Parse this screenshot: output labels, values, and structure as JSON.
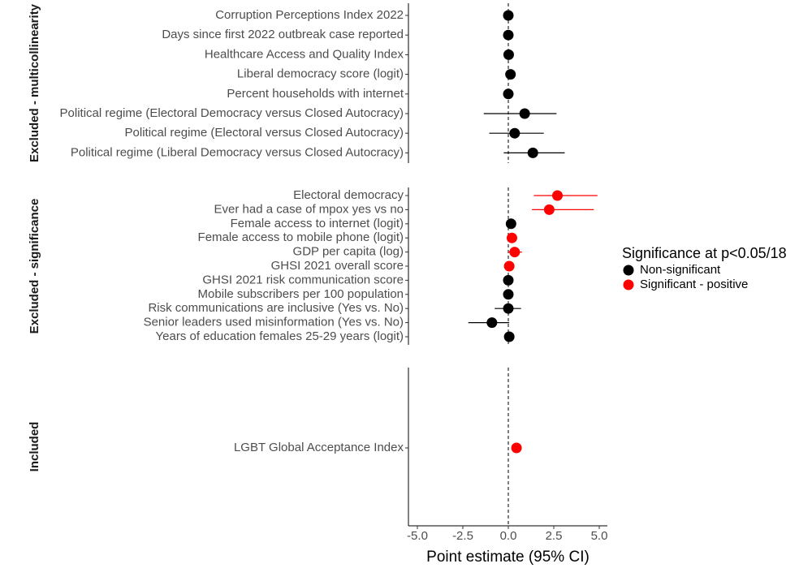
{
  "chart_data": {
    "type": "forest",
    "xlabel": "Point estimate (95% CI)",
    "xlim": [
      -5.5,
      5.5
    ],
    "xticks": [
      {
        "value": -5.0,
        "label": "-5.0"
      },
      {
        "value": -2.5,
        "label": "-2.5"
      },
      {
        "value": 0.0,
        "label": "0.0"
      },
      {
        "value": 2.5,
        "label": "2.5"
      },
      {
        "value": 5.0,
        "label": "5.0"
      }
    ],
    "reference_line": 0,
    "legend": {
      "title": "Significance at p<0.05/18",
      "placement": "right",
      "entries": [
        {
          "label": "Non-significant",
          "color": "#000000"
        },
        {
          "label": "Significant - positive",
          "color": "#ff0000"
        }
      ]
    },
    "panels": [
      {
        "label": "Excluded - multicollinearity",
        "rows": [
          {
            "label": "Corruption Perceptions Index 2022",
            "estimate": 0.0,
            "lower": -0.05,
            "upper": 0.05,
            "group": 0
          },
          {
            "label": "Days since first 2022 outbreak case reported",
            "estimate": 0.0,
            "lower": -0.05,
            "upper": 0.05,
            "group": 0
          },
          {
            "label": "Healthcare Access and Quality Index",
            "estimate": 0.02,
            "lower": -0.03,
            "upper": 0.07,
            "group": 0
          },
          {
            "label": "Liberal democracy score (logit)",
            "estimate": 0.12,
            "lower": 0.0,
            "upper": 0.25,
            "group": 0
          },
          {
            "label": "Percent households with internet",
            "estimate": 0.0,
            "lower": -0.05,
            "upper": 0.05,
            "group": 0
          },
          {
            "label": "Political regime (Electoral Democracy versus Closed Autocracy)",
            "estimate": 0.9,
            "lower": -1.35,
            "upper": 2.65,
            "group": 0
          },
          {
            "label": "Political regime (Electoral versus Closed Autocracy)",
            "estimate": 0.35,
            "lower": -1.05,
            "upper": 1.95,
            "group": 0
          },
          {
            "label": "Political regime (Liberal Democracy versus Closed Autocracy)",
            "estimate": 1.35,
            "lower": -0.25,
            "upper": 3.1,
            "group": 0
          }
        ]
      },
      {
        "label": "Excluded - significance",
        "rows": [
          {
            "label": "Electoral democracy",
            "estimate": 2.7,
            "lower": 1.4,
            "upper": 4.9,
            "group": 1
          },
          {
            "label": "Ever had a case of mpox yes vs no",
            "estimate": 2.25,
            "lower": 1.3,
            "upper": 4.7,
            "group": 1
          },
          {
            "label": "Female access to internet (logit)",
            "estimate": 0.15,
            "lower": 0.02,
            "upper": 0.3,
            "group": 0
          },
          {
            "label": "Female access to mobile phone (logit)",
            "estimate": 0.2,
            "lower": 0.05,
            "upper": 0.35,
            "group": 1
          },
          {
            "label": "GDP per capita (log)",
            "estimate": 0.35,
            "lower": 0.0,
            "upper": 0.75,
            "group": 1
          },
          {
            "label": "GHSI 2021 overall score",
            "estimate": 0.05,
            "lower": 0.0,
            "upper": 0.1,
            "group": 1
          },
          {
            "label": "GHSI 2021 risk communication score",
            "estimate": 0.0,
            "lower": -0.05,
            "upper": 0.05,
            "group": 0
          },
          {
            "label": "Mobile subscribers per 100 population",
            "estimate": 0.0,
            "lower": -0.05,
            "upper": 0.05,
            "group": 0
          },
          {
            "label": "Risk communications are inclusive (Yes vs. No)",
            "estimate": 0.0,
            "lower": -0.75,
            "upper": 0.7,
            "group": 0
          },
          {
            "label": "Senior leaders used misinformation (Yes vs. No)",
            "estimate": -0.9,
            "lower": -2.2,
            "upper": 0.05,
            "group": 0
          },
          {
            "label": "Years of education females 25-29 years (logit)",
            "estimate": 0.05,
            "lower": -0.05,
            "upper": 0.15,
            "group": 0
          }
        ]
      },
      {
        "label": "Included",
        "rows": [
          {
            "label": "LGBT Global Acceptance Index",
            "estimate": 0.45,
            "lower": 0.35,
            "upper": 0.55,
            "group": 1
          }
        ]
      }
    ]
  }
}
